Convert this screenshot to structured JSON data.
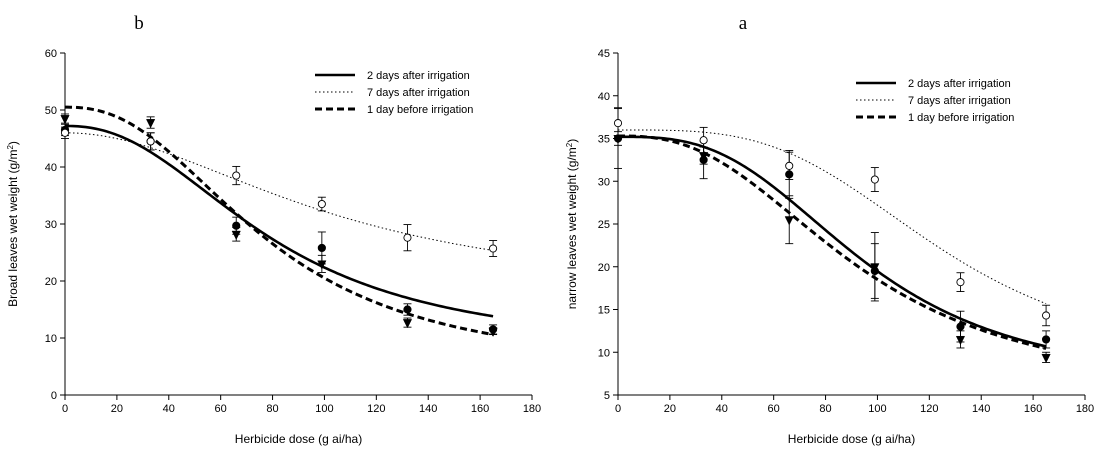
{
  "chart_data": [
    {
      "type": "line",
      "panel_letter": "b",
      "xlabel": "Herbicide dose (g ai/ha)",
      "ylabel_main": "Broad leaves wet weight (g/m",
      "ylabel_sup": "2",
      "ylabel_end": ")",
      "xlim": [
        0,
        180
      ],
      "ylim": [
        0,
        60
      ],
      "xticks": [
        "0",
        "20",
        "40",
        "60",
        "80",
        "100",
        "120",
        "140",
        "160",
        "180"
      ],
      "yticks": [
        "0",
        "10",
        "20",
        "30",
        "40",
        "50",
        "60"
      ],
      "grid": false,
      "legend_position": "top-right",
      "series": [
        {
          "name": "2 days after irrigation",
          "line": "solid",
          "marker": "filled-circle",
          "points": [
            [
              0,
              46.5
            ],
            [
              33,
              44.5
            ],
            [
              66,
              29.7
            ],
            [
              99,
              25.8
            ],
            [
              132,
              15.0
            ],
            [
              165,
              11.5
            ]
          ],
          "errors": [
            1.0,
            1.5,
            1.5,
            2.8,
            1.0,
            0.8
          ],
          "fit": {
            "bottom": 7.5,
            "top": 47.2,
            "ed50": 80,
            "slope": 2.3
          }
        },
        {
          "name": "7 days after irrigation",
          "line": "dotted",
          "marker": "open-circle",
          "points": [
            [
              0,
              46.0
            ],
            [
              33,
              44.5
            ],
            [
              66,
              38.5
            ],
            [
              99,
              33.5
            ],
            [
              132,
              27.6
            ],
            [
              165,
              25.7
            ]
          ],
          "errors": [
            1.0,
            1.5,
            1.6,
            1.2,
            2.3,
            1.4
          ],
          "fit": {
            "bottom": 17,
            "top": 46,
            "ed50": 105,
            "slope": 2.0
          }
        },
        {
          "name": "1 day before irrigation",
          "line": "dashed",
          "marker": "filled-triangle-down",
          "points": [
            [
              0,
              48.5
            ],
            [
              33,
              47.8
            ],
            [
              66,
              28.2
            ],
            [
              99,
              23.0
            ],
            [
              132,
              12.7
            ],
            [
              165,
              11.2
            ]
          ],
          "errors": [
            0.8,
            1.0,
            1.2,
            1.5,
            0.8,
            0.6
          ],
          "fit": {
            "bottom": 4,
            "top": 50.5,
            "ed50": 78,
            "slope": 2.4
          }
        }
      ]
    },
    {
      "type": "line",
      "panel_letter": "a",
      "xlabel": "Herbicide dose (g ai/ha)",
      "ylabel_main": "narrow leaves wet weight (g/m",
      "ylabel_sup": "2",
      "ylabel_end": ")",
      "xlim": [
        0,
        180
      ],
      "ylim": [
        5,
        45
      ],
      "xticks": [
        "0",
        "20",
        "40",
        "60",
        "80",
        "100",
        "120",
        "140",
        "160",
        "180"
      ],
      "yticks": [
        "5",
        "10",
        "15",
        "20",
        "25",
        "30",
        "35",
        "40",
        "45"
      ],
      "grid": false,
      "legend_position": "top-right",
      "series": [
        {
          "name": "2 days after irrigation",
          "line": "solid",
          "marker": "filled-circle",
          "points": [
            [
              0,
              35.0
            ],
            [
              33,
              32.5
            ],
            [
              66,
              30.8
            ],
            [
              99,
              19.5
            ],
            [
              132,
              13.0
            ],
            [
              165,
              11.5
            ]
          ],
          "errors": [
            3.5,
            2.2,
            2.8,
            3.2,
            1.8,
            1.0
          ],
          "fit": {
            "bottom": 6,
            "top": 35.2,
            "ed50": 95,
            "slope": 3.0
          }
        },
        {
          "name": "7 days after irrigation",
          "line": "dotted",
          "marker": "open-circle",
          "points": [
            [
              0,
              36.8
            ],
            [
              33,
              34.8
            ],
            [
              66,
              31.8
            ],
            [
              99,
              30.2
            ],
            [
              132,
              18.2
            ],
            [
              165,
              14.3
            ]
          ],
          "errors": [
            1.8,
            1.5,
            1.6,
            1.4,
            1.1,
            1.2
          ],
          "fit": {
            "bottom": 8,
            "top": 36,
            "ed50": 125,
            "slope": 3.5
          }
        },
        {
          "name": "1 day before irrigation",
          "line": "dashed",
          "marker": "filled-triangle-down",
          "points": [
            [
              0,
              35.0
            ],
            [
              33,
              33.0
            ],
            [
              66,
              25.5
            ],
            [
              99,
              20.0
            ],
            [
              132,
              11.5
            ],
            [
              165,
              9.4
            ]
          ],
          "errors": [
            0.8,
            1.0,
            2.8,
            4.0,
            1.0,
            0.6
          ],
          "fit": {
            "bottom": 5,
            "top": 35.3,
            "ed50": 92,
            "slope": 2.6
          }
        }
      ]
    }
  ]
}
